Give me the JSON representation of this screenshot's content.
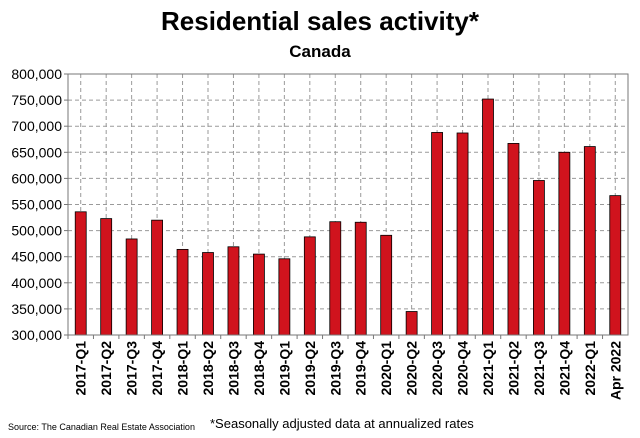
{
  "chart_data": {
    "type": "bar",
    "title": "Residential sales activity*",
    "subtitle": "Canada",
    "xlabel": "",
    "ylabel": "",
    "ylim": [
      300000,
      800000
    ],
    "y_ticks": [
      "300,000",
      "350,000",
      "400,000",
      "450,000",
      "500,000",
      "550,000",
      "600,000",
      "650,000",
      "700,000",
      "750,000",
      "800,000"
    ],
    "y_tick_values": [
      300000,
      350000,
      400000,
      450000,
      500000,
      550000,
      600000,
      650000,
      700000,
      750000,
      800000
    ],
    "categories": [
      "2017-Q1",
      "2017-Q2",
      "2017-Q3",
      "2017-Q4",
      "2018-Q1",
      "2018-Q2",
      "2018-Q3",
      "2018-Q4",
      "2019-Q1",
      "2019-Q2",
      "2019-Q3",
      "2019-Q4",
      "2020-Q1",
      "2020-Q2",
      "2020-Q3",
      "2020-Q4",
      "2021-Q1",
      "2021-Q2",
      "2021-Q3",
      "2021-Q4",
      "2022-Q1",
      "Apr 2022"
    ],
    "values": [
      536000,
      523000,
      484000,
      520000,
      464000,
      458000,
      469000,
      455000,
      446000,
      488000,
      517000,
      516000,
      491000,
      345000,
      688000,
      687000,
      752000,
      667000,
      596000,
      650000,
      661000,
      567000
    ],
    "bar_color": "#d0131d",
    "grid": true,
    "footnote": "*Seasonally adjusted data at annualized rates",
    "source": "Source: The Canadian Real Estate Association"
  }
}
